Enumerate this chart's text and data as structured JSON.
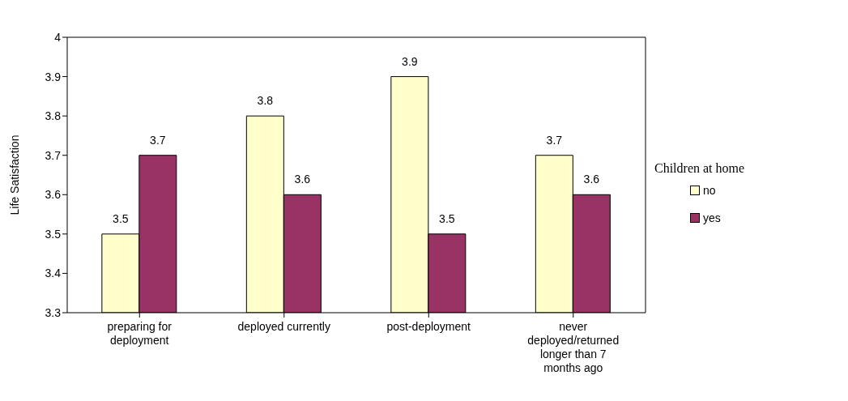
{
  "chart_data": {
    "type": "bar",
    "ylabel": "Life Satisfaction",
    "legend_title": "Children at home",
    "categories": [
      "preparing for deployment",
      "deployed currently",
      "post-deployment",
      "never deployed/returned longer than 7 months ago"
    ],
    "series": [
      {
        "name": "no",
        "color": "#ffffcc",
        "values": [
          3.5,
          3.8,
          3.9,
          3.7
        ]
      },
      {
        "name": "yes",
        "color": "#993366",
        "values": [
          3.7,
          3.6,
          3.5,
          3.6
        ]
      }
    ],
    "ylim": [
      3.3,
      4
    ],
    "yticks": [
      3.3,
      3.4,
      3.5,
      3.6,
      3.7,
      3.8,
      3.9,
      4
    ],
    "data_labels": true,
    "legend": "right"
  }
}
